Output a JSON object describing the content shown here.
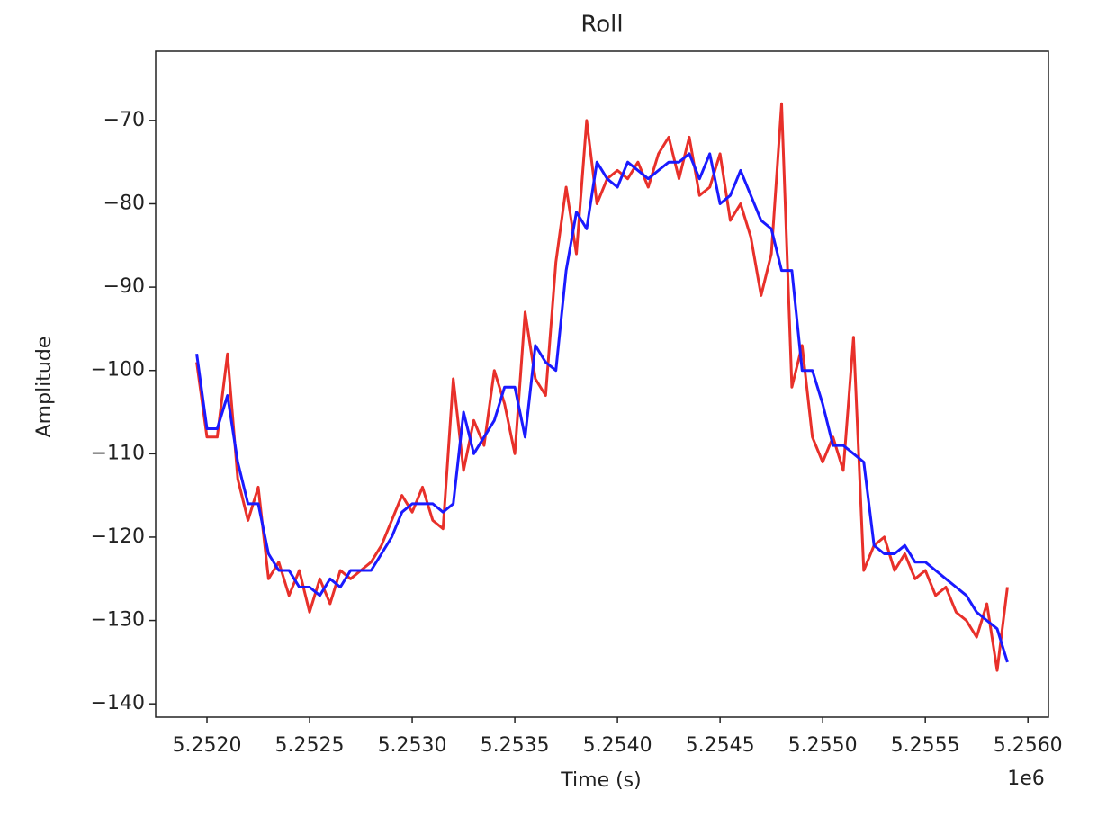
{
  "chart_data": {
    "type": "line",
    "title": "Roll",
    "x_label": "Time (s)",
    "y_label": "Amplitude",
    "x_offset_label": "1e6",
    "x": [
      5251950,
      5252000,
      5252050,
      5252100,
      5252150,
      5252200,
      5252250,
      5252300,
      5252350,
      5252400,
      5252450,
      5252500,
      5252550,
      5252600,
      5252650,
      5252700,
      5252750,
      5252800,
      5252850,
      5252900,
      5252950,
      5253000,
      5253050,
      5253100,
      5253150,
      5253200,
      5253250,
      5253300,
      5253350,
      5253400,
      5253450,
      5253500,
      5253550,
      5253600,
      5253650,
      5253700,
      5253750,
      5253800,
      5253850,
      5253900,
      5253950,
      5254000,
      5254050,
      5254100,
      5254150,
      5254200,
      5254250,
      5254300,
      5254350,
      5254400,
      5254450,
      5254500,
      5254550,
      5254600,
      5254650,
      5254700,
      5254750,
      5254800,
      5254850,
      5254900,
      5254950,
      5255000,
      5255050,
      5255100,
      5255150,
      5255200,
      5255250,
      5255300,
      5255350,
      5255400,
      5255450,
      5255500,
      5255550,
      5255600,
      5255650,
      5255700,
      5255750,
      5255800,
      5255850,
      5255900
    ],
    "series": [
      {
        "color": "#e8302a",
        "values": [
          -99,
          -108,
          -108,
          -98,
          -113,
          -118,
          -114,
          -125,
          -123,
          -127,
          -124,
          -129,
          -125,
          -128,
          -124,
          -125,
          -124,
          -123,
          -121,
          -118,
          -115,
          -117,
          -114,
          -118,
          -119,
          -101,
          -112,
          -106,
          -109,
          -100,
          -104,
          -110,
          -93,
          -101,
          -103,
          -87,
          -78,
          -86,
          -70,
          -80,
          -77,
          -76,
          -77,
          -75,
          -78,
          -74,
          -72,
          -77,
          -72,
          -79,
          -78,
          -74,
          -82,
          -80,
          -84,
          -91,
          -86,
          -68,
          -102,
          -97,
          -108,
          -111,
          -108,
          -112,
          -96,
          -124,
          -121,
          -120,
          -124,
          -122,
          -125,
          -124,
          -127,
          -126,
          -129,
          -130,
          -132,
          -128,
          -136,
          -126
        ]
      },
      {
        "color": "#1a1aff",
        "values": [
          -98,
          -107,
          -107,
          -103,
          -111,
          -116,
          -116,
          -122,
          -124,
          -124,
          -126,
          -126,
          -127,
          -125,
          -126,
          -124,
          -124,
          -124,
          -122,
          -120,
          -117,
          -116,
          -116,
          -116,
          -117,
          -116,
          -105,
          -110,
          -108,
          -106,
          -102,
          -102,
          -108,
          -97,
          -99,
          -100,
          -88,
          -81,
          -83,
          -75,
          -77,
          -78,
          -75,
          -76,
          -77,
          -76,
          -75,
          -75,
          -74,
          -77,
          -74,
          -80,
          -79,
          -76,
          -79,
          -82,
          -83,
          -88,
          -88,
          -100,
          -100,
          -104,
          -109,
          -109,
          -110,
          -111,
          -121,
          -122,
          -122,
          -121,
          -123,
          -123,
          -124,
          -125,
          -126,
          -127,
          -129,
          -130,
          -131,
          -135
        ]
      }
    ],
    "xlim": [
      5251750,
      5256100
    ],
    "ylim": [
      -141.6,
      -61.7
    ],
    "xticks": [
      {
        "value": 5252000,
        "label": "5.2520"
      },
      {
        "value": 5252500,
        "label": "5.2525"
      },
      {
        "value": 5253000,
        "label": "5.2530"
      },
      {
        "value": 5253500,
        "label": "5.2535"
      },
      {
        "value": 5254000,
        "label": "5.2540"
      },
      {
        "value": 5254500,
        "label": "5.2545"
      },
      {
        "value": 5255000,
        "label": "5.2550"
      },
      {
        "value": 5255500,
        "label": "5.2555"
      },
      {
        "value": 5256000,
        "label": "5.2560"
      }
    ],
    "yticks": [
      {
        "value": -70,
        "label": "−70"
      },
      {
        "value": -80,
        "label": "−80"
      },
      {
        "value": -90,
        "label": "−90"
      },
      {
        "value": -100,
        "label": "−100"
      },
      {
        "value": -110,
        "label": "−110"
      },
      {
        "value": -120,
        "label": "−120"
      },
      {
        "value": -130,
        "label": "−130"
      },
      {
        "value": -140,
        "label": "−140"
      }
    ],
    "grid": false
  }
}
